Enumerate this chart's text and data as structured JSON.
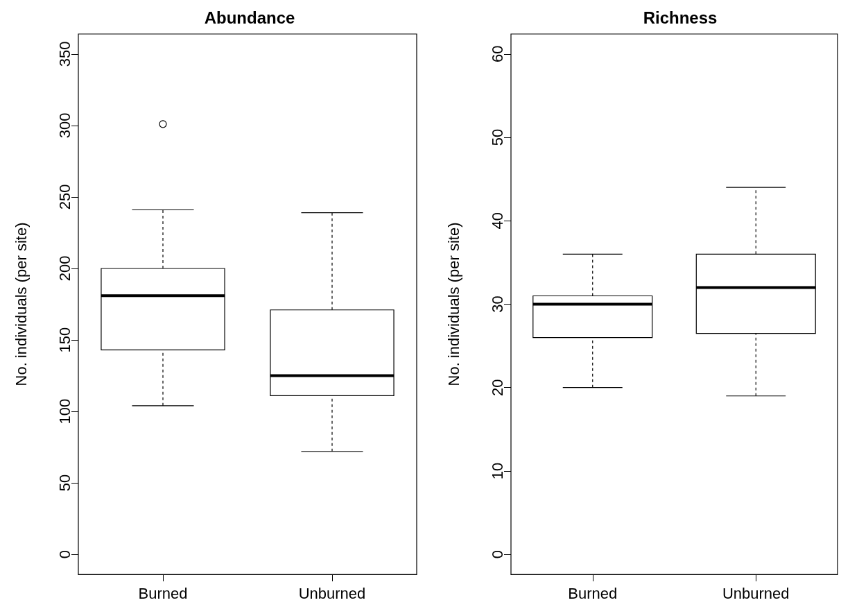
{
  "chart_data": [
    {
      "type": "box",
      "title": "Abundance",
      "ylabel": "No. individuals (per site)",
      "categories": [
        "Burned",
        "Unburned"
      ],
      "boxes": [
        {
          "low": 104,
          "q1": 143,
          "median": 181,
          "q3": 200,
          "high": 241,
          "outliers": [
            301
          ]
        },
        {
          "low": 72,
          "q1": 111,
          "median": 125,
          "q3": 171,
          "high": 239
        }
      ],
      "ylim": [
        -14,
        364
      ],
      "yticks": [
        0,
        50,
        100,
        150,
        200,
        250,
        300,
        350
      ]
    },
    {
      "type": "box",
      "title": "Richness",
      "ylabel": "No. individuals (per site)",
      "categories": [
        "Burned",
        "Unburned"
      ],
      "boxes": [
        {
          "low": 20,
          "q1": 26,
          "median": 30,
          "q3": 31,
          "high": 36
        },
        {
          "low": 19,
          "q1": 26.5,
          "median": 32,
          "q3": 36,
          "high": 44
        }
      ],
      "ylim": [
        -2.4,
        62.4
      ],
      "yticks": [
        0,
        10,
        20,
        30,
        40,
        50,
        60
      ]
    }
  ]
}
